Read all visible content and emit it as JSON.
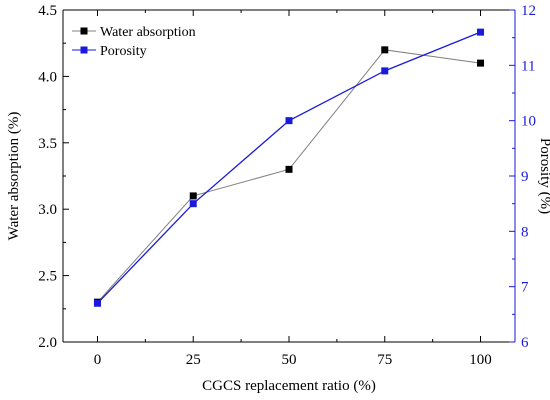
{
  "chart_data": {
    "type": "line",
    "title": "",
    "xlabel": "CGCS replacement ratio (%)",
    "ylabel_left": "Water absorption (%)",
    "ylabel_right": "Porosity (%)",
    "x": [
      0,
      25,
      50,
      75,
      100
    ],
    "x_ticks": [
      "0",
      "25",
      "50",
      "75",
      "100"
    ],
    "xlim": [
      -9,
      109
    ],
    "ylim_left": [
      2.0,
      4.5
    ],
    "y_ticks_left": [
      "2.0",
      "2.5",
      "3.0",
      "3.5",
      "4.0",
      "4.5"
    ],
    "ylim_right": [
      6,
      12
    ],
    "y_ticks_right": [
      "6",
      "7",
      "8",
      "9",
      "10",
      "11",
      "12"
    ],
    "grid": false,
    "legend_position": "top-left",
    "series": [
      {
        "name": "Water absorption",
        "axis": "left",
        "values": [
          2.3,
          3.1,
          3.3,
          4.2,
          4.1
        ],
        "color": "#000000",
        "line_color": "#808080",
        "marker": "square"
      },
      {
        "name": "Porosity",
        "axis": "right",
        "values": [
          6.7,
          8.5,
          10.0,
          10.9,
          11.6
        ],
        "color": "#1a1adb",
        "line_color": "#1a1adb",
        "marker": "square"
      }
    ],
    "colors": {
      "right_axis": "#1a1adb",
      "left_axis": "#000000"
    }
  }
}
